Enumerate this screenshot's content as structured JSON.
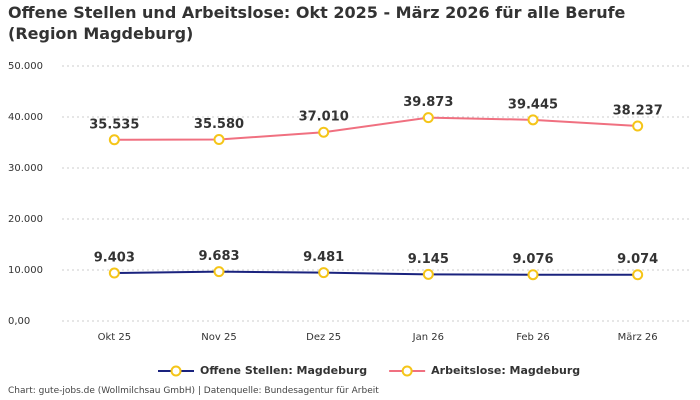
{
  "chart_data": {
    "type": "line",
    "title": "Offene Stellen und Arbeitslose: Okt 2025 - März 2026 für alle Berufe (Region Magdeburg)",
    "source": "Chart: gute-jobs.de (Wollmilchsau GmbH) | Datenquelle: Bundesagentur für Arbeit",
    "categories": [
      "Okt 25",
      "Nov 25",
      "Dez 25",
      "Jan 26",
      "Feb 26",
      "März 26"
    ],
    "series": [
      {
        "name": "Offene Stellen: Magdeburg",
        "color": "#1a237e",
        "values": [
          9403,
          9683,
          9481,
          9145,
          9076,
          9074
        ],
        "value_labels": [
          "9.403",
          "9.683",
          "9.481",
          "9.145",
          "9.076",
          "9.074"
        ]
      },
      {
        "name": "Arbeitslose: Magdeburg",
        "color": "#f07080",
        "values": [
          35535,
          35580,
          37010,
          39873,
          39445,
          38237
        ],
        "value_labels": [
          "35.535",
          "35.580",
          "37.010",
          "39.873",
          "39.445",
          "38.237"
        ]
      }
    ],
    "marker_color": "#f5c518",
    "ylim": [
      0,
      50000
    ],
    "yticks": [
      {
        "value": 0,
        "label": "0,00"
      },
      {
        "value": 10000,
        "label": "10.000"
      },
      {
        "value": 20000,
        "label": "20.000"
      },
      {
        "value": 30000,
        "label": "30.000"
      },
      {
        "value": 40000,
        "label": "40.000"
      },
      {
        "value": 50000,
        "label": "50.000"
      }
    ],
    "grid": true
  }
}
